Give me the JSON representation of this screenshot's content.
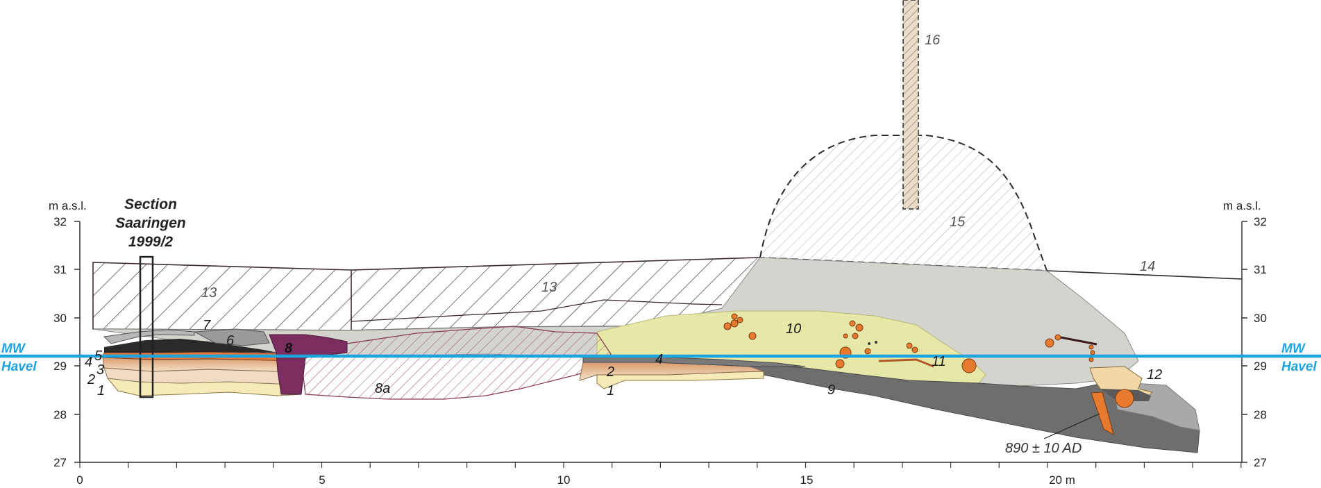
{
  "y_axis": {
    "unit_left": "m a.s.l.",
    "unit_right": "m a.s.l.",
    "ticks": [
      "32",
      "31",
      "30",
      "29",
      "28",
      "27"
    ]
  },
  "x_axis": {
    "ticks": [
      "0",
      "5",
      "10",
      "15",
      "20 m"
    ]
  },
  "water_level": {
    "line1": "MW",
    "line2": "Havel",
    "color": "#1fa3dc"
  },
  "section": {
    "line1": "Section",
    "line2": "Saaringen",
    "line3": "1999/2"
  },
  "layers": {
    "l1a": "1",
    "l1b": "1",
    "l2a": "2",
    "l2b": "2",
    "l3": "3",
    "l4a": "4",
    "l4b": "4",
    "l5": "5",
    "l6": "6",
    "l7": "7",
    "l8": "8",
    "l8a": "8a",
    "l9": "9",
    "l10": "10",
    "l11": "11",
    "l12": "12",
    "l13a": "13",
    "l13b": "13",
    "l14": "14",
    "l15": "15",
    "l16": "16"
  },
  "dating": {
    "label": "890 ± 10 AD"
  },
  "colors": {
    "grey_fill": "#d3d3cf",
    "dark_grey": "#6e6e6e",
    "yellow_green": "#e6e8a8",
    "purple": "#7a2d5e",
    "orange": "#e67a2e",
    "hatch_dark": "#3a2a30",
    "hatch_maroon": "#8a3a55"
  }
}
